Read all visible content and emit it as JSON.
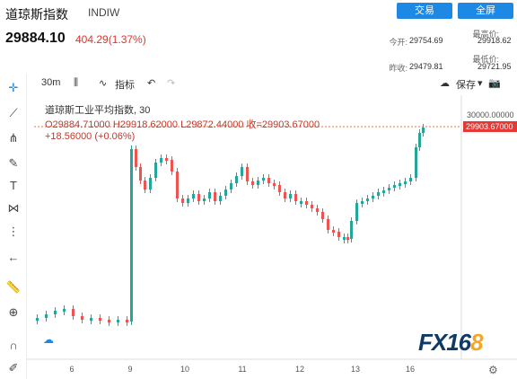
{
  "header": {
    "name": "道琼斯指数",
    "code": "INDIW",
    "price": "29884.10",
    "change": "404.29(1.37%)",
    "trade_label": "交易",
    "full_label": "全屏",
    "stats": {
      "open_label": "今开:",
      "open_value": "29754.69",
      "high_label": "最高价:",
      "high_value": "29918.62",
      "prev_label": "昨收:",
      "prev_value": "29479.81",
      "low_label": "最低价:",
      "low_value": "29721.95"
    }
  },
  "toolbar": {
    "interval": "30m",
    "indicator_label": "指标",
    "save_label": "保存"
  },
  "legend": {
    "title": "道琼斯工业平均指数, 30",
    "ohlc": "O29884.71000  H29918.62000  L29872.44000  收=29903.67000",
    "change": "+18.56000 (+0.06%)"
  },
  "axis": {
    "price_tick": "30000.00000",
    "last_price": "29903.67000"
  },
  "chart_data": {
    "type": "candlestick",
    "x_tick_labels": [
      "6",
      "9",
      "10",
      "11",
      "12",
      "13",
      "16"
    ],
    "y_tick_labels": [
      "30000.00000"
    ],
    "last_value": 29903.67,
    "colors": {
      "up": "#26a69a",
      "down": "#ef5350",
      "last_line": "#e57a3c"
    }
  },
  "watermark": {
    "main": "FX16",
    "accent": "8"
  }
}
